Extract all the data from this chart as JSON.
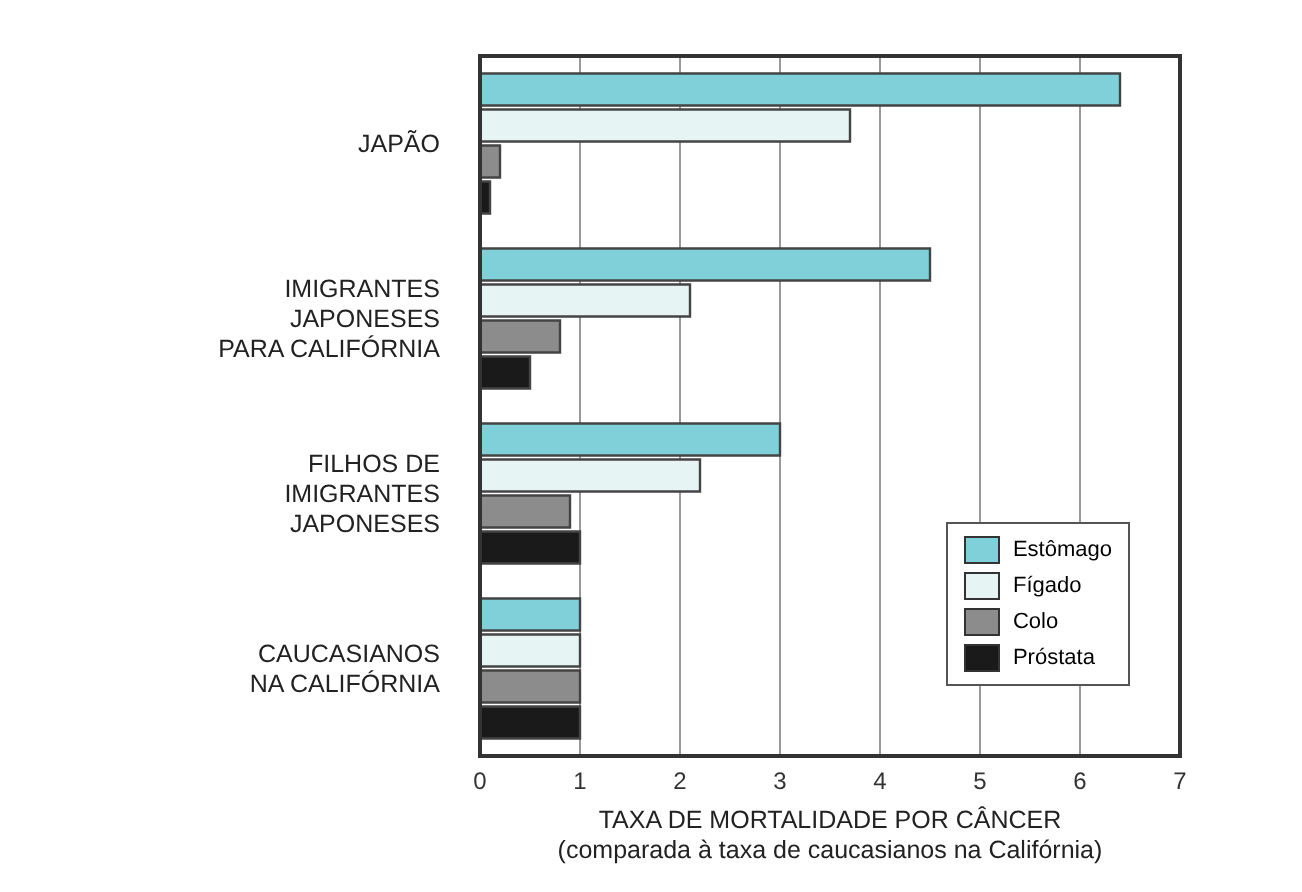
{
  "chart_data": {
    "type": "bar",
    "orientation": "horizontal",
    "xlabel": "TAXA DE MORTALIDADE POR CÂNCER\n(comparada à taxa de caucasianos na Califórnia)",
    "categories": [
      "JAPÃO",
      "IMIGRANTES\nJAPONESES\nPARA CALIFÓRNIA",
      "FILHOS DE\nIMIGRANTES\nJAPONESES",
      "CAUCASIANOS\nNA CALIFÓRNIA"
    ],
    "series": [
      {
        "name": "Estômago",
        "color": "#7fd0d8",
        "values": [
          6.4,
          4.5,
          3.0,
          1.0
        ]
      },
      {
        "name": "Fígado",
        "color": "#e6f4f4",
        "values": [
          3.7,
          2.1,
          2.2,
          1.0
        ]
      },
      {
        "name": "Colo",
        "color": "#8c8c8c",
        "values": [
          0.2,
          0.8,
          0.9,
          1.0
        ]
      },
      {
        "name": "Próstata",
        "color": "#1a1a1a",
        "values": [
          0.1,
          0.5,
          1.0,
          1.0
        ]
      }
    ],
    "xlim": [
      0,
      7
    ],
    "xticks": [
      0,
      1,
      2,
      3,
      4,
      5,
      6,
      7
    ],
    "grid": "x",
    "legend": "bottom right"
  }
}
